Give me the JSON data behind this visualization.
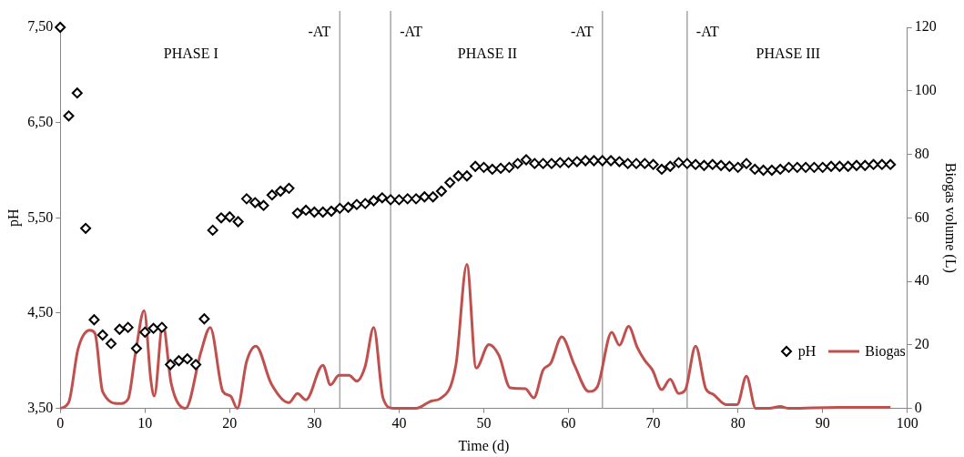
{
  "chart_data": {
    "type": "line",
    "xlabel": "Time (d)",
    "ylabel": "pH",
    "y2label": "Biogas volume (L)",
    "x": [
      0,
      1,
      2,
      3,
      4,
      5,
      6,
      7,
      8,
      9,
      10,
      11,
      12,
      13,
      14,
      15,
      16,
      17,
      18,
      19,
      20,
      21,
      22,
      23,
      24,
      25,
      26,
      27,
      28,
      29,
      30,
      31,
      32,
      33,
      34,
      35,
      36,
      37,
      38,
      39,
      40,
      41,
      42,
      43,
      44,
      45,
      46,
      47,
      48,
      49,
      50,
      51,
      52,
      53,
      54,
      55,
      56,
      57,
      58,
      59,
      60,
      61,
      62,
      63,
      64,
      65,
      66,
      67,
      68,
      69,
      70,
      71,
      72,
      73,
      74,
      75,
      76,
      77,
      78,
      79,
      80,
      81,
      82,
      83,
      84,
      85,
      86,
      87,
      88,
      89,
      90,
      91,
      92,
      93,
      94,
      95,
      96,
      97,
      98
    ],
    "series": [
      {
        "name": "pH",
        "type": "scatter",
        "marker": "diamond",
        "color": "#000000",
        "values": [
          7.5,
          6.57,
          6.81,
          5.39,
          4.43,
          4.27,
          4.18,
          4.33,
          4.35,
          4.13,
          4.3,
          4.34,
          4.35,
          3.96,
          4.0,
          4.02,
          3.96,
          4.44,
          5.37,
          5.5,
          5.51,
          5.46,
          5.7,
          5.66,
          5.63,
          5.74,
          5.78,
          5.81,
          5.55,
          5.58,
          5.56,
          5.56,
          5.57,
          5.6,
          5.61,
          5.64,
          5.65,
          5.68,
          5.71,
          5.69,
          5.69,
          5.7,
          5.7,
          5.72,
          5.72,
          5.78,
          5.87,
          5.94,
          5.94,
          6.04,
          6.03,
          6.01,
          6.02,
          6.03,
          6.07,
          6.11,
          6.07,
          6.07,
          6.07,
          6.08,
          6.08,
          6.09,
          6.1,
          6.1,
          6.1,
          6.1,
          6.09,
          6.07,
          6.07,
          6.07,
          6.06,
          6.01,
          6.04,
          6.08,
          6.07,
          6.06,
          6.05,
          6.06,
          6.05,
          6.04,
          6.03,
          6.07,
          6.01,
          6.0,
          6.0,
          6.01,
          6.03,
          6.03,
          6.03,
          6.03,
          6.03,
          6.04,
          6.04,
          6.04,
          6.05,
          6.05,
          6.06,
          6.06,
          6.06
        ]
      },
      {
        "name": "Biogas",
        "type": "line",
        "axis": "y2",
        "marker": "none",
        "color": "#c0504d",
        "x": [
          0,
          1,
          2.1,
          3.5,
          4.1,
          5,
          7,
          8,
          8.9,
          9.9,
          10.7,
          11.1,
          12.1,
          13.1,
          14.8,
          16.6,
          17.7,
          19.2,
          20.1,
          20.9,
          22,
          23.1,
          24.9,
          27,
          28,
          29,
          31,
          31.9,
          32.9,
          34.1,
          35,
          36,
          37,
          38.1,
          39.3,
          42,
          43.9,
          44.8,
          46.7,
          48,
          49.1,
          50.6,
          51.8,
          53.1,
          54.9,
          55.9,
          57,
          57.9,
          59.2,
          60.7,
          62.4,
          63.4,
          65.1,
          66,
          67.1,
          68.1,
          69,
          69.9,
          71,
          72,
          73,
          73.8,
          75,
          76.2,
          77.1,
          78.6,
          79.9,
          81,
          82.1,
          83.7,
          85,
          86,
          91.8,
          98
        ],
        "values": [
          0,
          1.9,
          18.7,
          24.6,
          23.6,
          5.3,
          1.5,
          2.9,
          17.7,
          30.8,
          8.8,
          3.9,
          26.6,
          7.8,
          0,
          17.7,
          25.5,
          5.3,
          3.9,
          0,
          14.8,
          19.6,
          7.8,
          1.8,
          4.7,
          2.7,
          13.6,
          7.4,
          10.4,
          10.4,
          8.6,
          13.3,
          25.5,
          3.3,
          0,
          0,
          2.4,
          3,
          13.6,
          45.3,
          12.7,
          20.1,
          16.6,
          6.5,
          6.2,
          3.3,
          12.1,
          14.2,
          22.5,
          13.6,
          5.3,
          6.8,
          24,
          19.9,
          25.8,
          19.3,
          15.1,
          12.1,
          5.9,
          9.2,
          4.7,
          5.9,
          19.6,
          6.2,
          4.4,
          1.2,
          1.2,
          10.1,
          0,
          0,
          0.6,
          0,
          0.3,
          0.3
        ]
      }
    ],
    "xlim": [
      0,
      100
    ],
    "xticks": [
      0,
      10,
      20,
      30,
      40,
      50,
      60,
      70,
      80,
      90,
      100
    ],
    "ylim": [
      3.5,
      7.5
    ],
    "yticks": [
      {
        "value": 3.5,
        "label": "3,50"
      },
      {
        "value": 4.5,
        "label": "4,50"
      },
      {
        "value": 5.5,
        "label": "5,50"
      },
      {
        "value": 6.5,
        "label": "6,50"
      },
      {
        "value": 7.5,
        "label": "7,50"
      }
    ],
    "y2lim": [
      0,
      120
    ],
    "y2ticks": [
      0,
      20,
      40,
      60,
      80,
      100,
      120
    ],
    "ref_lines": [
      {
        "axis": "x",
        "value": 33,
        "label": "-AT",
        "color": "#a6a6a6"
      },
      {
        "axis": "x",
        "value": 39,
        "label": "-AT",
        "color": "#a6a6a6"
      },
      {
        "axis": "x",
        "value": 64,
        "label": "-AT",
        "color": "#a6a6a6"
      },
      {
        "axis": "x",
        "value": 74,
        "label": "-AT",
        "color": "#a6a6a6"
      }
    ],
    "annotations": [
      "PHASE I",
      "PHASE II",
      "PHASE III"
    ],
    "legend": "right",
    "grid": false
  }
}
